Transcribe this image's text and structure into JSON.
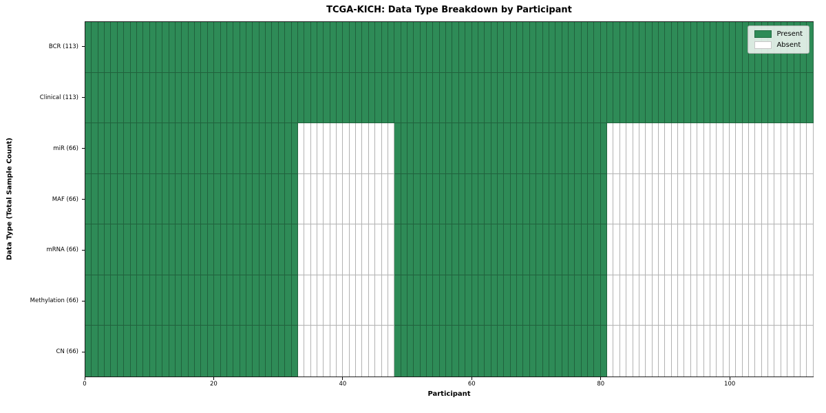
{
  "chart_data": {
    "type": "heatmap",
    "title": "TCGA-KICH: Data Type Breakdown by Participant",
    "xlabel": "Participant",
    "ylabel": "Data Type (Total Sample Count)",
    "n_participants": 113,
    "x_ticks": [
      0,
      20,
      40,
      60,
      80,
      100
    ],
    "rows": [
      {
        "label": "BCR (113)",
        "total_samples": 113,
        "present_ranges": [
          [
            0,
            113
          ]
        ]
      },
      {
        "label": "Clinical (113)",
        "total_samples": 113,
        "present_ranges": [
          [
            0,
            113
          ]
        ]
      },
      {
        "label": "miR (66)",
        "total_samples": 66,
        "present_ranges": [
          [
            0,
            33
          ],
          [
            48,
            81
          ]
        ]
      },
      {
        "label": "MAF (66)",
        "total_samples": 66,
        "present_ranges": [
          [
            0,
            33
          ],
          [
            48,
            81
          ]
        ]
      },
      {
        "label": "mRNA (66)",
        "total_samples": 66,
        "present_ranges": [
          [
            0,
            33
          ],
          [
            48,
            81
          ]
        ]
      },
      {
        "label": "Methylation (66)",
        "total_samples": 66,
        "present_ranges": [
          [
            0,
            33
          ],
          [
            48,
            81
          ]
        ]
      },
      {
        "label": "CN (66)",
        "total_samples": 66,
        "present_ranges": [
          [
            0,
            33
          ],
          [
            48,
            81
          ]
        ]
      }
    ],
    "legend": [
      {
        "label": "Present",
        "color": "#2e8b57"
      },
      {
        "label": "Absent",
        "color": "#ffffff"
      }
    ],
    "colors": {
      "present": "#2e8b57",
      "absent": "#ffffff",
      "cell_edge": "rgba(0,0,0,0.30)"
    },
    "layout": {
      "legend_position": "upper right",
      "grid": "cell-borders",
      "xlim": [
        0,
        113
      ]
    }
  }
}
